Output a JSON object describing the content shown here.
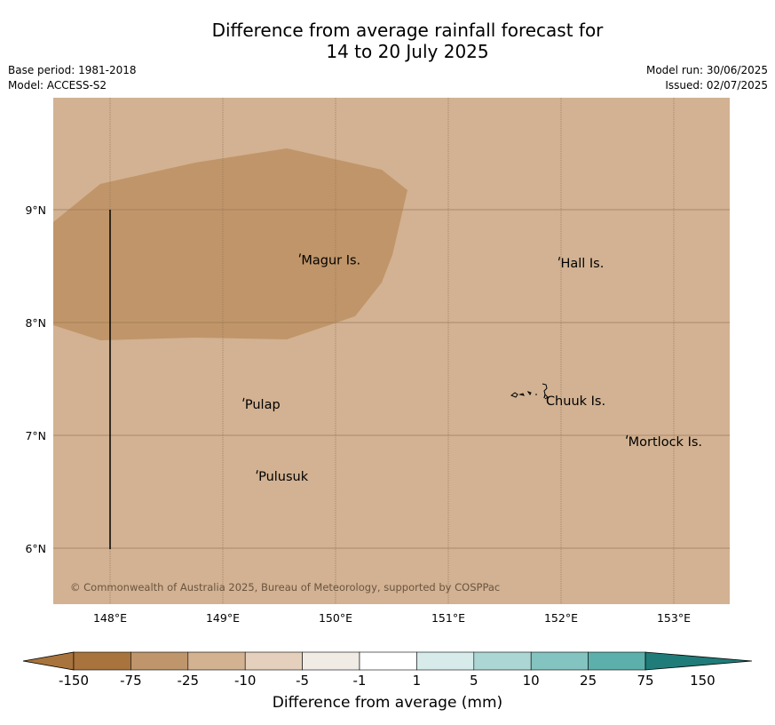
{
  "title_line1": "Difference from average rainfall forecast for",
  "title_line2": "14 to 20 July 2025",
  "meta_left": [
    "Base period: 1981-2018",
    "Model: ACCESS-S2"
  ],
  "meta_right": [
    "Model run: 30/06/2025",
    "Issued: 02/07/2025"
  ],
  "copyright": "© Commonwealth of Australia 2025, Bureau of Meteorology, supported by COSPPac",
  "lon_ticks": [
    "148°E",
    "149°E",
    "150°E",
    "151°E",
    "152°E",
    "153°E"
  ],
  "lat_ticks": [
    "9°N",
    "8°N",
    "7°N",
    "6°N"
  ],
  "places": [
    {
      "name": "Magur Is.",
      "lon": 149.68,
      "lat": 8.58
    },
    {
      "name": "Hall Is.",
      "lon": 151.98,
      "lat": 8.55
    },
    {
      "name": "Pulap",
      "lon": 149.18,
      "lat": 7.3
    },
    {
      "name": "Chuuk Is.",
      "lon": 151.85,
      "lat": 7.33
    },
    {
      "name": "Mortlock Is.",
      "lon": 152.58,
      "lat": 6.97
    },
    {
      "name": "Pulusuk",
      "lon": 149.3,
      "lat": 6.66
    }
  ],
  "colorbar": {
    "ticks": [
      "-150",
      "-75",
      "-25",
      "-10",
      "-5",
      "-1",
      "1",
      "5",
      "10",
      "25",
      "75",
      "150"
    ],
    "colors": [
      "#a8733c",
      "#bf956b",
      "#d2b290",
      "#e4d0bc",
      "#f0ebe4",
      "#ffffff",
      "#d6ebea",
      "#acd6d4",
      "#83c3c0",
      "#5cb0ac",
      "#369c97",
      "#1f7c78"
    ],
    "label": "Difference from average (mm)"
  },
  "map_colors": {
    "background": "#d2b292",
    "anomaly_region": "#c09569",
    "grid": "#9a7a5c"
  }
}
